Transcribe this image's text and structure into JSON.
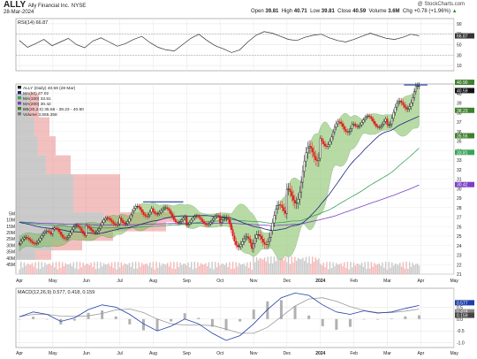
{
  "header": {
    "ticker": "ALLY",
    "company": "Ally Financial Inc.",
    "exchange": "NYSE",
    "date": "28-Mar-2024",
    "open_label": "Open",
    "open": "39.81",
    "high_label": "High",
    "high": "40.71",
    "low_label": "Low",
    "low": "39.81",
    "close_label": "Close",
    "close": "40.59",
    "volume_label": "Volume",
    "volume": "3.6M",
    "chg_label": "Chg",
    "chg": "+0.78 (+1.96%)",
    "chg_arrow": "▲",
    "watermark": "@ StockCharts.com"
  },
  "rsi_panel": {
    "label": "RSI(14) 66.87",
    "ticks": [
      "90",
      "70",
      "50",
      "30",
      "10"
    ],
    "value_tag": "66.87"
  },
  "price_panel": {
    "legend": [
      "ALLY (Daily) 40.59 (28 Mar)",
      "MA(50) 37.02",
      "MA(100) 33.81",
      "MA(200) 30.42",
      "BB(20,2.0) 35.56 - 38.23 - 40.90",
      "Volume 3,555,358"
    ],
    "y_ticks": [
      "40",
      "39",
      "38",
      "37",
      "36",
      "35",
      "34",
      "33",
      "32",
      "31",
      "30",
      "29",
      "28",
      "27",
      "26",
      "25",
      "24",
      "23",
      "22",
      "21"
    ],
    "tags": [
      "40.90",
      "40.59",
      "38.23",
      "35.56",
      "33.81",
      "30.42"
    ],
    "volume_ticks": [
      "45M",
      "40M",
      "35M",
      "30M",
      "25M",
      "20M",
      "15M",
      "10M",
      "5M"
    ]
  },
  "macd_panel": {
    "label": "MACD(12,26,9) 0.577, 0.418, 0.159",
    "ticks": [
      "0.5",
      "0.0",
      "-0.5",
      "-1.0"
    ],
    "tags": [
      "0.577",
      "0.418",
      "0.159"
    ]
  },
  "x_axis": {
    "labels": [
      "Apr",
      "May",
      "Jun",
      "Jul",
      "Aug",
      "Sep",
      "Oct",
      "Nov",
      "Dec",
      "2024",
      "Feb",
      "Mar",
      "Apr",
      "May"
    ]
  },
  "colors": {
    "up": "#111111",
    "down": "#e01b1b",
    "ma50": "#1a237e",
    "ma100": "#3aa35c",
    "ma200": "#7b3fc4",
    "bb_fill": "#7fbf5f",
    "rsi": "#333333",
    "macd": "#1f3ea8",
    "signal": "#9a9a9a",
    "vbp_up": "#9e9e9e",
    "vbp_down": "#e57373",
    "resistance": "#1f3ea8"
  },
  "chart_data": {
    "type": "candlestick",
    "ticker": "ALLY",
    "period": "Daily, Apr 2023 - Mar 2024",
    "x": [
      "Apr",
      "May",
      "Jun",
      "Jul",
      "Aug",
      "Sep",
      "Oct",
      "Nov",
      "Dec",
      "2024",
      "Feb",
      "Mar"
    ],
    "ylim": [
      21,
      41
    ],
    "monthly_ohlc": [
      {
        "month": "Apr",
        "open": 24.2,
        "high": 25.8,
        "low": 23.6,
        "close": 25.2
      },
      {
        "month": "May",
        "open": 25.2,
        "high": 26.6,
        "low": 23.7,
        "close": 25.6
      },
      {
        "month": "Jun",
        "open": 25.6,
        "high": 27.5,
        "low": 25.0,
        "close": 26.8
      },
      {
        "month": "Jul",
        "open": 26.8,
        "high": 29.5,
        "low": 26.2,
        "close": 28.0
      },
      {
        "month": "Aug",
        "open": 28.0,
        "high": 28.3,
        "low": 25.8,
        "close": 26.6
      },
      {
        "month": "Sep",
        "open": 26.6,
        "high": 27.8,
        "low": 25.6,
        "close": 26.7
      },
      {
        "month": "Oct",
        "open": 26.7,
        "high": 27.0,
        "low": 22.3,
        "close": 23.4
      },
      {
        "month": "Nov",
        "open": 23.4,
        "high": 28.4,
        "low": 22.8,
        "close": 28.2
      },
      {
        "month": "Dec",
        "open": 28.2,
        "high": 35.9,
        "low": 28.0,
        "close": 34.9
      },
      {
        "month": "Jan",
        "open": 34.9,
        "high": 37.6,
        "low": 33.5,
        "close": 37.1
      },
      {
        "month": "Feb",
        "open": 37.1,
        "high": 38.2,
        "low": 35.5,
        "close": 37.0
      },
      {
        "month": "Mar",
        "open": 37.0,
        "high": 40.9,
        "low": 36.6,
        "close": 40.59
      }
    ],
    "last": {
      "open": 39.81,
      "high": 40.71,
      "low": 39.81,
      "close": 40.59,
      "volume": 3555358
    },
    "ma": {
      "ma50": 37.02,
      "ma100": 33.81,
      "ma200": 30.42
    },
    "bollinger": {
      "lower": 35.56,
      "middle": 38.23,
      "upper": 40.9
    },
    "rsi14": 66.87,
    "macd": {
      "macd": 0.577,
      "signal": 0.418,
      "histogram": 0.159
    }
  }
}
